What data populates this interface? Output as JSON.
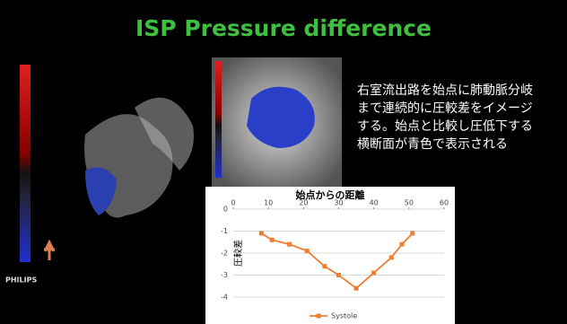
{
  "slide": {
    "title": "ISP Pressure difference",
    "description": [
      "右室流出路を始点に肺動脈分岐",
      "まで連続的に圧較差をイメージ",
      "する。始点と比較し圧低下する",
      "横断面が青色で表示される"
    ],
    "logo": "PHILIPS"
  },
  "chart_data": {
    "type": "line",
    "title": "始点からの距離",
    "y_label": "圧較差",
    "x": [
      8,
      11,
      16,
      21,
      26,
      30,
      35,
      40,
      45,
      48,
      51
    ],
    "series": [
      {
        "name": "Systole",
        "color": "#ed7d31",
        "values": [
          -1.1,
          -1.4,
          -1.6,
          -1.9,
          -2.6,
          -3.0,
          -3.6,
          -2.9,
          -2.2,
          -1.6,
          -1.1
        ]
      }
    ],
    "xlim": [
      0,
      60
    ],
    "xticks": [
      0,
      10,
      20,
      30,
      40,
      50,
      60
    ],
    "ylim": [
      -4,
      0
    ],
    "yticks": [
      0,
      -1,
      -2,
      -3,
      -4
    ],
    "grid": true,
    "legend": "bottom"
  }
}
